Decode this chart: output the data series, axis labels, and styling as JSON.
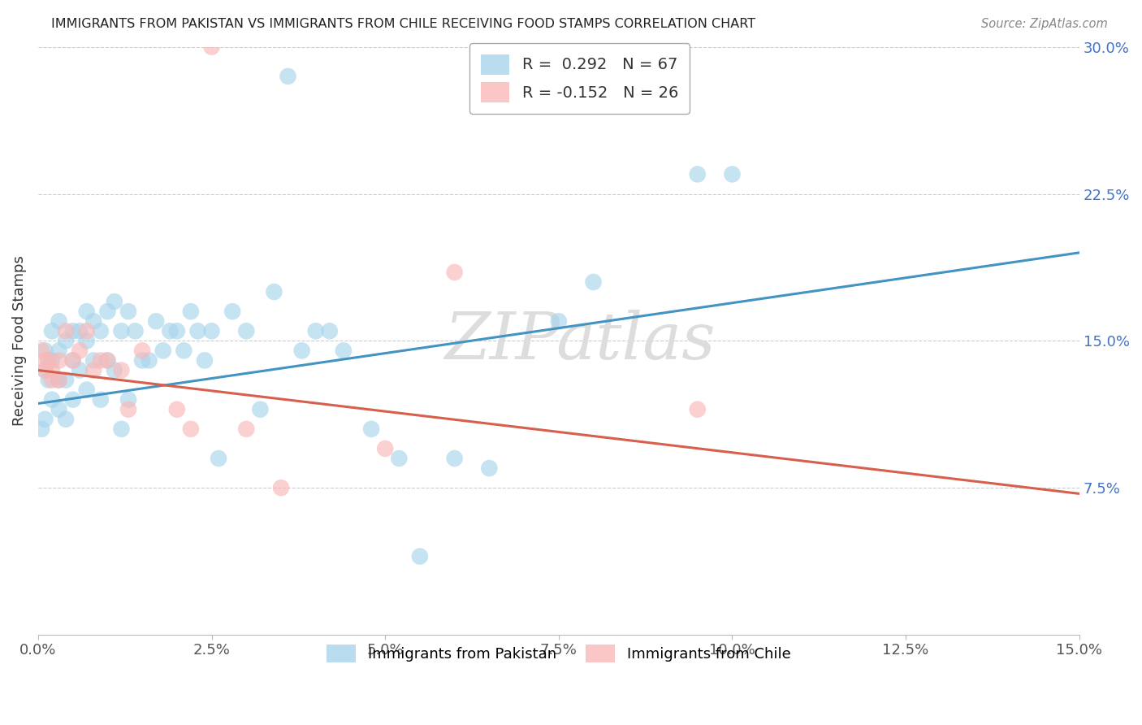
{
  "title": "IMMIGRANTS FROM PAKISTAN VS IMMIGRANTS FROM CHILE RECEIVING FOOD STAMPS CORRELATION CHART",
  "source": "Source: ZipAtlas.com",
  "ylabel": "Receiving Food Stamps",
  "legend_pakistan": "Immigrants from Pakistan",
  "legend_chile": "Immigrants from Chile",
  "r_pakistan": 0.292,
  "n_pakistan": 67,
  "r_chile": -0.152,
  "n_chile": 26,
  "xlim": [
    0.0,
    0.15
  ],
  "ylim": [
    0.0,
    0.3
  ],
  "yticks": [
    0.075,
    0.15,
    0.225,
    0.3
  ],
  "ytick_labels": [
    "7.5%",
    "15.0%",
    "22.5%",
    "30.0%"
  ],
  "xticks": [
    0.0,
    0.025,
    0.05,
    0.075,
    0.1,
    0.125,
    0.15
  ],
  "xtick_labels": [
    "0.0%",
    "2.5%",
    "5.0%",
    "7.5%",
    "10.0%",
    "12.5%",
    "15.0%"
  ],
  "pakistan_x": [
    0.0005,
    0.001,
    0.001,
    0.001,
    0.0015,
    0.0015,
    0.002,
    0.002,
    0.002,
    0.003,
    0.003,
    0.003,
    0.003,
    0.004,
    0.004,
    0.004,
    0.005,
    0.005,
    0.005,
    0.006,
    0.006,
    0.007,
    0.007,
    0.007,
    0.008,
    0.008,
    0.009,
    0.009,
    0.01,
    0.01,
    0.011,
    0.011,
    0.012,
    0.012,
    0.013,
    0.013,
    0.014,
    0.015,
    0.016,
    0.017,
    0.018,
    0.019,
    0.02,
    0.021,
    0.022,
    0.023,
    0.024,
    0.025,
    0.026,
    0.028,
    0.03,
    0.032,
    0.034,
    0.036,
    0.038,
    0.04,
    0.042,
    0.044,
    0.048,
    0.052,
    0.055,
    0.06,
    0.065,
    0.075,
    0.08,
    0.095,
    0.1
  ],
  "pakistan_y": [
    0.105,
    0.145,
    0.135,
    0.11,
    0.14,
    0.13,
    0.155,
    0.14,
    0.12,
    0.16,
    0.145,
    0.13,
    0.115,
    0.15,
    0.13,
    0.11,
    0.155,
    0.14,
    0.12,
    0.155,
    0.135,
    0.165,
    0.15,
    0.125,
    0.16,
    0.14,
    0.155,
    0.12,
    0.165,
    0.14,
    0.17,
    0.135,
    0.155,
    0.105,
    0.165,
    0.12,
    0.155,
    0.14,
    0.14,
    0.16,
    0.145,
    0.155,
    0.155,
    0.145,
    0.165,
    0.155,
    0.14,
    0.155,
    0.09,
    0.165,
    0.155,
    0.115,
    0.175,
    0.285,
    0.145,
    0.155,
    0.155,
    0.145,
    0.105,
    0.09,
    0.04,
    0.09,
    0.085,
    0.16,
    0.18,
    0.235,
    0.235
  ],
  "chile_x": [
    0.0005,
    0.001,
    0.001,
    0.0015,
    0.002,
    0.002,
    0.003,
    0.003,
    0.004,
    0.005,
    0.006,
    0.007,
    0.008,
    0.009,
    0.01,
    0.012,
    0.013,
    0.015,
    0.02,
    0.022,
    0.025,
    0.03,
    0.035,
    0.05,
    0.06,
    0.095
  ],
  "chile_y": [
    0.145,
    0.14,
    0.135,
    0.14,
    0.135,
    0.13,
    0.14,
    0.13,
    0.155,
    0.14,
    0.145,
    0.155,
    0.135,
    0.14,
    0.14,
    0.135,
    0.115,
    0.145,
    0.115,
    0.105,
    0.3,
    0.105,
    0.075,
    0.095,
    0.185,
    0.115
  ],
  "pakistan_color": "#92c5de",
  "chile_color": "#f4a582",
  "pakistan_line_color": "#4393c3",
  "chile_line_color": "#d6604d",
  "pakistan_scatter_color": "#a8d4eb",
  "chile_scatter_color": "#f9b8b8",
  "watermark": "ZIPatlas",
  "background_color": "#ffffff",
  "grid_color": "#cccccc",
  "regression_pakistan_x0": 0.0,
  "regression_pakistan_y0": 0.118,
  "regression_pakistan_x1": 0.15,
  "regression_pakistan_y1": 0.195,
  "regression_chile_x0": 0.0,
  "regression_chile_y0": 0.135,
  "regression_chile_x1": 0.15,
  "regression_chile_y1": 0.072
}
